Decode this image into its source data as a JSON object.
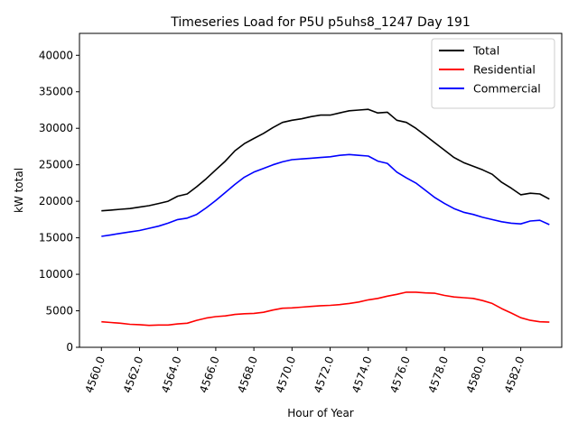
{
  "chart_data": {
    "type": "line",
    "title": "Timeseries Load for P5U p5uhs8_1247  Day 191",
    "xlabel": "Hour of Year",
    "ylabel": "kW total",
    "xlim": [
      4558.85,
      4584.15
    ],
    "ylim": [
      0,
      43000
    ],
    "xticks": [
      4560,
      4562,
      4564,
      4566,
      4568,
      4570,
      4572,
      4574,
      4576,
      4578,
      4580,
      4582
    ],
    "xtick_labels": [
      "4560.0",
      "4562.0",
      "4564.0",
      "4566.0",
      "4568.0",
      "4570.0",
      "4572.0",
      "4574.0",
      "4576.0",
      "4578.0",
      "4580.0",
      "4582.0"
    ],
    "yticks": [
      0,
      5000,
      10000,
      15000,
      20000,
      25000,
      30000,
      35000,
      40000
    ],
    "ytick_labels": [
      "0",
      "5000",
      "10000",
      "15000",
      "20000",
      "25000",
      "30000",
      "35000",
      "40000"
    ],
    "legend_position": "top-right",
    "series": [
      {
        "name": "Total",
        "color": "#000000",
        "x": [
          4560,
          4560.5,
          4561,
          4561.5,
          4562,
          4562.5,
          4563,
          4563.5,
          4564,
          4564.5,
          4565,
          4565.5,
          4566,
          4566.5,
          4567,
          4567.5,
          4568,
          4568.5,
          4569,
          4569.5,
          4570,
          4570.5,
          4571,
          4571.5,
          4572,
          4572.5,
          4573,
          4573.5,
          4574,
          4574.5,
          4575,
          4575.5,
          4576,
          4576.5,
          4577,
          4577.5,
          4578,
          4578.5,
          4579,
          4579.5,
          4580,
          4580.5,
          4581,
          4581.5,
          4582,
          4582.5,
          4583,
          4583.5
        ],
        "values": [
          18700,
          18800,
          18900,
          19000,
          19200,
          19400,
          19700,
          20000,
          20700,
          21000,
          22000,
          23100,
          24300,
          25500,
          26900,
          27900,
          28600,
          29300,
          30100,
          30800,
          31100,
          31300,
          31600,
          31800,
          31800,
          32100,
          32400,
          32500,
          32600,
          32100,
          32200,
          31100,
          30800,
          30000,
          29000,
          28000,
          27000,
          26000,
          25300,
          24800,
          24300,
          23700,
          22600,
          21800,
          20900,
          21100,
          21000,
          20300
        ]
      },
      {
        "name": "Residential",
        "color": "#ff0000",
        "x": [
          4560,
          4560.5,
          4561,
          4561.5,
          4562,
          4562.5,
          4563,
          4563.5,
          4564,
          4564.5,
          4565,
          4565.5,
          4566,
          4566.5,
          4567,
          4567.5,
          4568,
          4568.5,
          4569,
          4569.5,
          4570,
          4570.5,
          4571,
          4571.5,
          4572,
          4572.5,
          4573,
          4573.5,
          4574,
          4574.5,
          4575,
          4575.5,
          4576,
          4576.5,
          4577,
          4577.5,
          4578,
          4578.5,
          4579,
          4579.5,
          4580,
          4580.5,
          4581,
          4581.5,
          4582,
          4582.5,
          4583,
          4583.5
        ],
        "values": [
          3500,
          3400,
          3300,
          3150,
          3100,
          3000,
          3050,
          3050,
          3200,
          3300,
          3700,
          4000,
          4200,
          4300,
          4500,
          4600,
          4650,
          4800,
          5100,
          5350,
          5400,
          5500,
          5600,
          5700,
          5750,
          5850,
          6000,
          6200,
          6500,
          6700,
          7000,
          7250,
          7550,
          7550,
          7450,
          7400,
          7100,
          6900,
          6800,
          6700,
          6400,
          6000,
          5300,
          4700,
          4050,
          3700,
          3500,
          3450
        ]
      },
      {
        "name": "Commercial",
        "color": "#0000ff",
        "x": [
          4560,
          4560.5,
          4561,
          4561.5,
          4562,
          4562.5,
          4563,
          4563.5,
          4564,
          4564.5,
          4565,
          4565.5,
          4566,
          4566.5,
          4567,
          4567.5,
          4568,
          4568.5,
          4569,
          4569.5,
          4570,
          4570.5,
          4571,
          4571.5,
          4572,
          4572.5,
          4573,
          4573.5,
          4574,
          4574.5,
          4575,
          4575.5,
          4576,
          4576.5,
          4577,
          4577.5,
          4578,
          4578.5,
          4579,
          4579.5,
          4580,
          4580.5,
          4581,
          4581.5,
          4582,
          4582.5,
          4583,
          4583.5
        ],
        "values": [
          15200,
          15400,
          15600,
          15800,
          16000,
          16300,
          16600,
          17000,
          17500,
          17700,
          18200,
          19100,
          20100,
          21200,
          22300,
          23300,
          24000,
          24500,
          25000,
          25400,
          25700,
          25800,
          25900,
          26000,
          26100,
          26300,
          26400,
          26300,
          26200,
          25500,
          25200,
          24000,
          23200,
          22500,
          21500,
          20500,
          19700,
          19000,
          18500,
          18200,
          17800,
          17500,
          17200,
          17000,
          16900,
          17300,
          17400,
          16800
        ]
      }
    ]
  }
}
